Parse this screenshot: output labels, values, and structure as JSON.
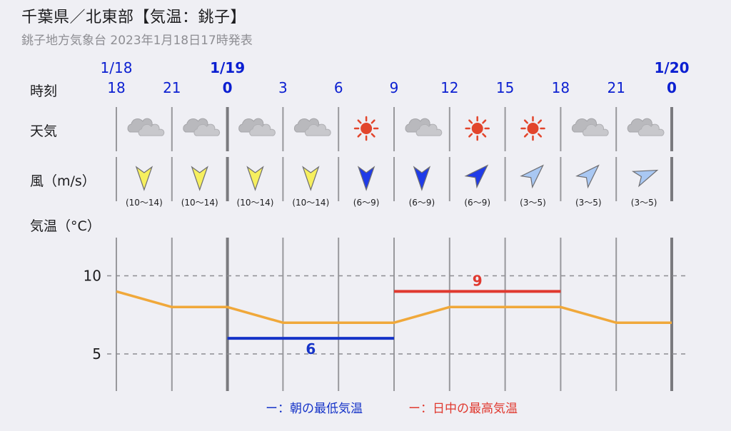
{
  "header": {
    "title": "千葉県／北東部【気温：銚子】",
    "issued": "銚子地方気象台 2023年1月18日17時発表"
  },
  "labels": {
    "time": "時刻",
    "weather": "天気",
    "wind": "風（m/s）",
    "temp": "気温（°C）"
  },
  "dates": [
    {
      "text": "1/18",
      "col": 0,
      "bold": false
    },
    {
      "text": "1/19",
      "col": 2,
      "bold": true
    },
    {
      "text": "1/20",
      "col": 10,
      "bold": true
    }
  ],
  "hours": [
    "18",
    "21",
    "0",
    "3",
    "6",
    "9",
    "12",
    "15",
    "18",
    "21",
    "0"
  ],
  "bold_hours_idx": [
    2,
    10
  ],
  "weather": [
    "cloud-icon",
    "cloud-icon",
    "cloud-icon",
    "cloud-icon",
    "sun-icon",
    "cloud-icon",
    "sun-icon",
    "sun-icon",
    "cloud-icon",
    "cloud-icon"
  ],
  "wind": [
    {
      "dir": "N",
      "strength": "strong",
      "range": "(10〜14)"
    },
    {
      "dir": "N",
      "strength": "strong",
      "range": "(10〜14)"
    },
    {
      "dir": "N",
      "strength": "strong",
      "range": "(10〜14)"
    },
    {
      "dir": "N",
      "strength": "strong",
      "range": "(10〜14)"
    },
    {
      "dir": "N",
      "strength": "medium",
      "range": "(6〜9)"
    },
    {
      "dir": "N",
      "strength": "medium",
      "range": "(6〜9)"
    },
    {
      "dir": "SW",
      "strength": "medium",
      "range": "(6〜9)"
    },
    {
      "dir": "SW",
      "strength": "weak",
      "range": "(3〜5)"
    },
    {
      "dir": "SW",
      "strength": "weak",
      "range": "(3〜5)"
    },
    {
      "dir": "WSW",
      "strength": "weak",
      "range": "(3〜5)"
    }
  ],
  "wind_colors": {
    "strong": "#f6ef5e",
    "medium": "#1f3be8",
    "weak": "#a9c8f3"
  },
  "chart_data": {
    "type": "line",
    "x": [
      "18",
      "21",
      "0",
      "3",
      "6",
      "9",
      "12",
      "15",
      "18",
      "21",
      "0"
    ],
    "series": [
      {
        "values": [
          9,
          8,
          8,
          7,
          7,
          7,
          8,
          8,
          8,
          7,
          7
        ],
        "color": "#f0a83a"
      }
    ],
    "yticks": [
      5,
      10
    ],
    "ylim": [
      2.5,
      12.5
    ],
    "min_temp": {
      "value": 6,
      "label": "6",
      "from_idx": 2,
      "to_idx": 5,
      "color": "#1533c8"
    },
    "max_temp": {
      "value": 9,
      "label": "9",
      "from_idx": 5,
      "to_idx": 8,
      "color": "#e0392f"
    },
    "grid": true
  },
  "legend": {
    "min": "ー：朝の最低気温",
    "max": "ー：日中の最高気温",
    "min_color": "#1533c8",
    "max_color": "#e0392f"
  }
}
